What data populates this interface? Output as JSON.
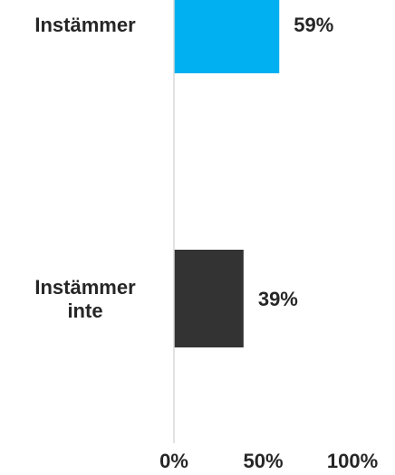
{
  "chart_data": {
    "type": "bar",
    "orientation": "horizontal",
    "categories": [
      [
        "Instämmer"
      ],
      [
        "Instämmer",
        "inte"
      ]
    ],
    "values": [
      59,
      39
    ],
    "value_labels": [
      "59%",
      "39%"
    ],
    "bar_colors": [
      "#00B0F0",
      "#333333"
    ],
    "xlim": [
      0,
      100
    ],
    "x_ticks": [
      0,
      50,
      100
    ],
    "x_tick_labels": [
      "0%",
      "50%",
      "100%"
    ],
    "title": "",
    "xlabel": "",
    "ylabel": "",
    "grid": false,
    "legend": "none"
  }
}
